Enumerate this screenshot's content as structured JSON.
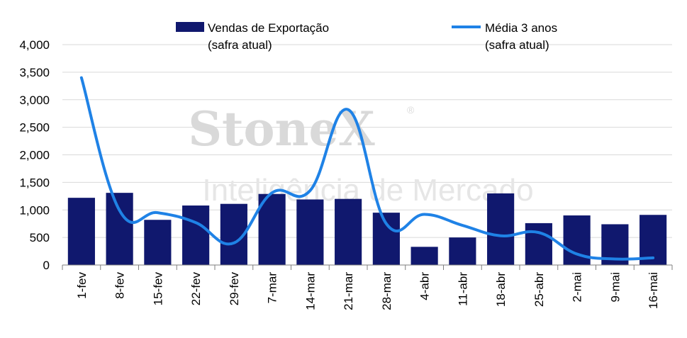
{
  "chart_data": {
    "type": "bar",
    "categories": [
      "1-fev",
      "8-fev",
      "15-fev",
      "22-fev",
      "29-fev",
      "7-mar",
      "14-mar",
      "21-mar",
      "28-mar",
      "4-abr",
      "11-abr",
      "18-abr",
      "25-abr",
      "2-mai",
      "9-mai",
      "16-mai"
    ],
    "series": [
      {
        "name": "Vendas de Exportação (safra atual)",
        "type": "bar",
        "color": "#10186e",
        "values": [
          1220,
          1310,
          820,
          1080,
          1110,
          1290,
          1190,
          1200,
          950,
          330,
          500,
          1300,
          760,
          900,
          740,
          910
        ]
      },
      {
        "name": "Média 3 anos (safra atual)",
        "type": "line",
        "color": "#1f82e6",
        "values": [
          3400,
          990,
          950,
          770,
          400,
          1310,
          1350,
          2820,
          750,
          920,
          720,
          530,
          590,
          200,
          110,
          130
        ]
      }
    ],
    "yticks": [
      "0",
      "500",
      "1,000",
      "1,500",
      "2,000",
      "2,500",
      "3,000",
      "3,500",
      "4,000"
    ],
    "ylim": [
      0,
      4000
    ],
    "grid": true,
    "legend": {
      "position": "top",
      "entries": [
        {
          "line1": "Vendas de Exportação",
          "line2": "(safra atual)"
        },
        {
          "line1": "Média 3 anos",
          "line2": "(safra atual)"
        }
      ]
    },
    "watermark": {
      "main": "StoneX",
      "registered": "®",
      "sub": "Inteligência de Mercado"
    }
  }
}
